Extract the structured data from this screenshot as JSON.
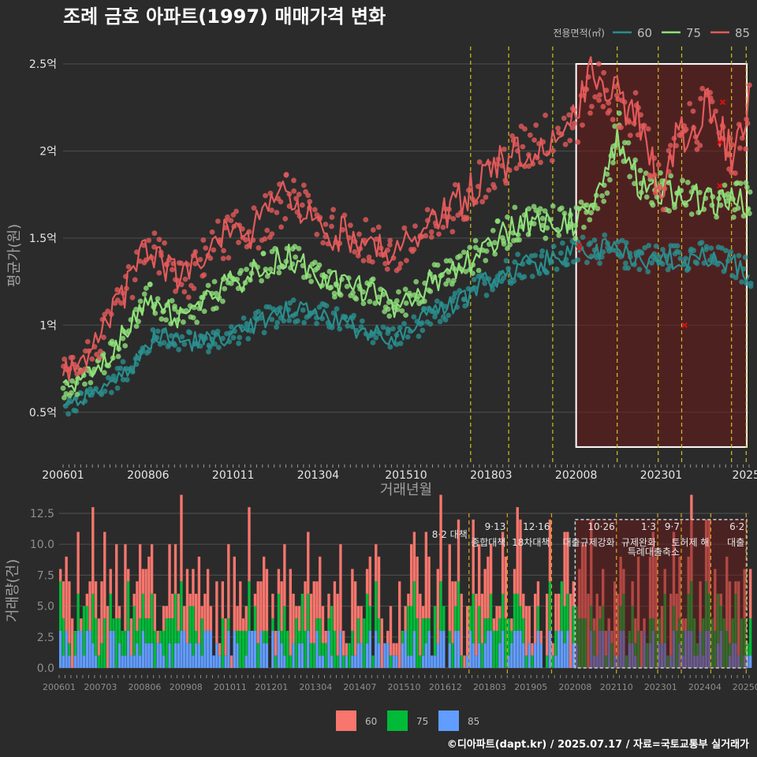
{
  "title": "조례 금호 아파트(1997) 매매가격 변화",
  "caption": "©디아파트(dapt.kr) / 2025.07.17 / 자료=국토교통부 실거래가",
  "colors": {
    "s60": "#2a8e8e",
    "s75": "#8fe07a",
    "s85": "#e35a5a",
    "bar60": "#f8766d",
    "bar75": "#00ba38",
    "bar85": "#619cff",
    "vline": "#d4c21a",
    "vline_bar": "#e0a419",
    "highlight": "#6b1a1a"
  },
  "chart_data": [
    {
      "type": "line",
      "ylabel": "평균가(원)",
      "xlabel": "거래년월",
      "legend_title": "전용면적(㎡)",
      "legend_position": "top-right",
      "grid": true,
      "x_range": [
        "2006-01",
        "2025-07"
      ],
      "y_range": [
        0.2,
        2.6
      ],
      "y_ticks": [
        0.5,
        1.0,
        1.5,
        2.0,
        2.5
      ],
      "y_tick_labels": [
        "0.5억",
        "1억",
        "1.5억",
        "2억",
        "2.5억"
      ],
      "x_tick_labels": [
        "200601",
        "200806",
        "201011",
        "201304",
        "201510",
        "201803",
        "202008",
        "202301",
        "2025"
      ],
      "x_tick_dates": [
        "2006-01",
        "2008-06",
        "2010-11",
        "2013-04",
        "2015-10",
        "2018-03",
        "2020-08",
        "2023-01",
        "2025-06"
      ],
      "highlight_range": [
        "2020-08",
        "2025-07"
      ],
      "highlight_y_range": [
        0.3,
        2.5
      ],
      "event_lines": [
        "2017-08",
        "2018-09",
        "2019-12",
        "2021-10",
        "2022-12",
        "2023-08",
        "2025-01",
        "2025-06"
      ],
      "series": [
        {
          "name": "60",
          "anchors": [
            [
              "2006-01",
              0.52
            ],
            [
              "2007-01",
              0.62
            ],
            [
              "2008-01",
              0.78
            ],
            [
              "2008-09",
              0.95
            ],
            [
              "2009-06",
              0.9
            ],
            [
              "2010-06",
              0.92
            ],
            [
              "2011-06",
              1.0
            ],
            [
              "2012-06",
              1.1
            ],
            [
              "2013-06",
              1.05
            ],
            [
              "2014-06",
              0.98
            ],
            [
              "2015-06",
              0.92
            ],
            [
              "2016-06",
              1.05
            ],
            [
              "2017-06",
              1.15
            ],
            [
              "2018-01",
              1.25
            ],
            [
              "2019-01",
              1.35
            ],
            [
              "2020-01",
              1.38
            ],
            [
              "2021-01",
              1.45
            ],
            [
              "2022-01",
              1.4
            ],
            [
              "2023-01",
              1.38
            ],
            [
              "2024-01",
              1.4
            ],
            [
              "2025-01",
              1.35
            ],
            [
              "2025-07",
              1.3
            ]
          ]
        },
        {
          "name": "75",
          "anchors": [
            [
              "2006-01",
              0.62
            ],
            [
              "2007-01",
              0.75
            ],
            [
              "2008-06",
              1.15
            ],
            [
              "2009-06",
              1.02
            ],
            [
              "2010-06",
              1.2
            ],
            [
              "2011-06",
              1.3
            ],
            [
              "2012-06",
              1.4
            ],
            [
              "2013-06",
              1.25
            ],
            [
              "2014-06",
              1.22
            ],
            [
              "2015-06",
              1.1
            ],
            [
              "2016-06",
              1.25
            ],
            [
              "2017-06",
              1.35
            ],
            [
              "2018-01",
              1.45
            ],
            [
              "2019-01",
              1.6
            ],
            [
              "2020-01",
              1.6
            ],
            [
              "2020-08",
              1.58
            ],
            [
              "2021-06",
              1.85
            ],
            [
              "2021-10",
              2.1
            ],
            [
              "2022-06",
              1.8
            ],
            [
              "2023-06",
              1.75
            ],
            [
              "2024-06",
              1.7
            ],
            [
              "2025-07",
              1.72
            ]
          ]
        },
        {
          "name": "85",
          "anchors": [
            [
              "2006-01",
              0.72
            ],
            [
              "2007-01",
              0.9
            ],
            [
              "2008-06",
              1.45
            ],
            [
              "2009-06",
              1.25
            ],
            [
              "2010-06",
              1.5
            ],
            [
              "2011-06",
              1.55
            ],
            [
              "2012-06",
              1.75
            ],
            [
              "2013-06",
              1.55
            ],
            [
              "2014-06",
              1.5
            ],
            [
              "2015-06",
              1.4
            ],
            [
              "2016-06",
              1.55
            ],
            [
              "2017-06",
              1.75
            ],
            [
              "2018-01",
              1.85
            ],
            [
              "2019-01",
              2.0
            ],
            [
              "2020-01",
              2.1
            ],
            [
              "2020-08",
              2.2
            ],
            [
              "2021-01",
              2.4
            ],
            [
              "2021-10",
              2.3
            ],
            [
              "2022-06",
              2.15
            ],
            [
              "2023-01",
              1.75
            ],
            [
              "2023-06",
              2.05
            ],
            [
              "2024-06",
              2.25
            ],
            [
              "2025-02",
              1.95
            ],
            [
              "2025-07",
              2.25
            ]
          ]
        }
      ],
      "cancel_marks": [
        [
          "2020-09",
          1.46
        ],
        [
          "2020-09",
          1.44
        ],
        [
          "2023-09",
          1.0
        ],
        [
          "2024-09",
          2.05
        ],
        [
          "2024-10",
          2.28
        ],
        [
          "2024-09",
          1.8
        ]
      ]
    },
    {
      "type": "bar",
      "stacked": true,
      "ylabel": "거래량(건)",
      "legend_position": "bottom",
      "y_range": [
        0,
        12.5
      ],
      "y_ticks": [
        0,
        2.5,
        5.0,
        7.5,
        10.0,
        12.5
      ],
      "y_tick_labels": [
        "0.0",
        "2.5",
        "5.0",
        "7.5",
        "10.0",
        "12.5"
      ],
      "x_tick_labels": [
        "200601",
        "200703",
        "200806",
        "200908",
        "201011",
        "201201",
        "201304",
        "201407",
        "201510",
        "201612",
        "201803",
        "201905",
        "202008",
        "202110",
        "202301",
        "202404",
        "20250"
      ],
      "x_tick_dates": [
        "2006-01",
        "2007-03",
        "2008-06",
        "2009-08",
        "2010-11",
        "2012-01",
        "2013-04",
        "2014-07",
        "2015-10",
        "2016-12",
        "2018-03",
        "2019-05",
        "2020-08",
        "2021-10",
        "2023-01",
        "2024-04",
        "2025-06"
      ],
      "series_names": [
        "60",
        "75",
        "85"
      ],
      "typical_totals": [
        6.0,
        4.5,
        3.0
      ],
      "highlight_range": [
        "2020-08",
        "2025-07"
      ],
      "events": [
        {
          "date": "2017-08",
          "line1": "8·2 대책",
          "line2": ""
        },
        {
          "date": "2018-09",
          "line1": "9·13",
          "line2": "종합대책"
        },
        {
          "date": "2019-12",
          "line1": "12·16",
          "line2": "18차대책"
        },
        {
          "date": "2021-10",
          "line1": "10·26",
          "line2": "대출규제강화"
        },
        {
          "date": "2022-12",
          "line1": "1·3",
          "line2": "규제완화"
        },
        {
          "date": "2023-08",
          "line1": "9·7",
          "line2": "특례대출축소"
        },
        {
          "date": "2024-06",
          "line1": "",
          "line2": "토허제 해"
        },
        {
          "date": "2025-06",
          "line1": "6·2",
          "line2": "대출"
        }
      ]
    }
  ]
}
